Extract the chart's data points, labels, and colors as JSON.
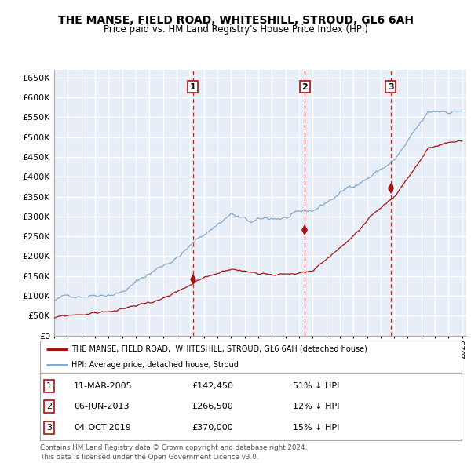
{
  "title": "THE MANSE, FIELD ROAD, WHITESHILL, STROUD, GL6 6AH",
  "subtitle": "Price paid vs. HM Land Registry's House Price Index (HPI)",
  "hpi_color": "#7faacc",
  "price_color": "#aa1111",
  "background_color": "#ffffff",
  "plot_bg_color": "#e8eef8",
  "grid_color": "#ffffff",
  "ylim": [
    0,
    670000
  ],
  "yticks": [
    0,
    50000,
    100000,
    150000,
    200000,
    250000,
    300000,
    350000,
    400000,
    450000,
    500000,
    550000,
    600000,
    650000
  ],
  "sales": [
    {
      "date_num": 2005.19,
      "price": 142450,
      "label": "1"
    },
    {
      "date_num": 2013.43,
      "price": 266500,
      "label": "2"
    },
    {
      "date_num": 2019.75,
      "price": 370000,
      "label": "3"
    }
  ],
  "legend_property": "THE MANSE, FIELD ROAD,  WHITESHILL, STROUD, GL6 6AH (detached house)",
  "legend_hpi": "HPI: Average price, detached house, Stroud",
  "table_rows": [
    {
      "num": "1",
      "date": "11-MAR-2005",
      "price": "£142,450",
      "hpi": "51% ↓ HPI"
    },
    {
      "num": "2",
      "date": "06-JUN-2013",
      "price": "£266,500",
      "hpi": "12% ↓ HPI"
    },
    {
      "num": "3",
      "date": "04-OCT-2019",
      "price": "£370,000",
      "hpi": "15% ↓ HPI"
    }
  ],
  "footer": "Contains HM Land Registry data © Crown copyright and database right 2024.\nThis data is licensed under the Open Government Licence v3.0."
}
